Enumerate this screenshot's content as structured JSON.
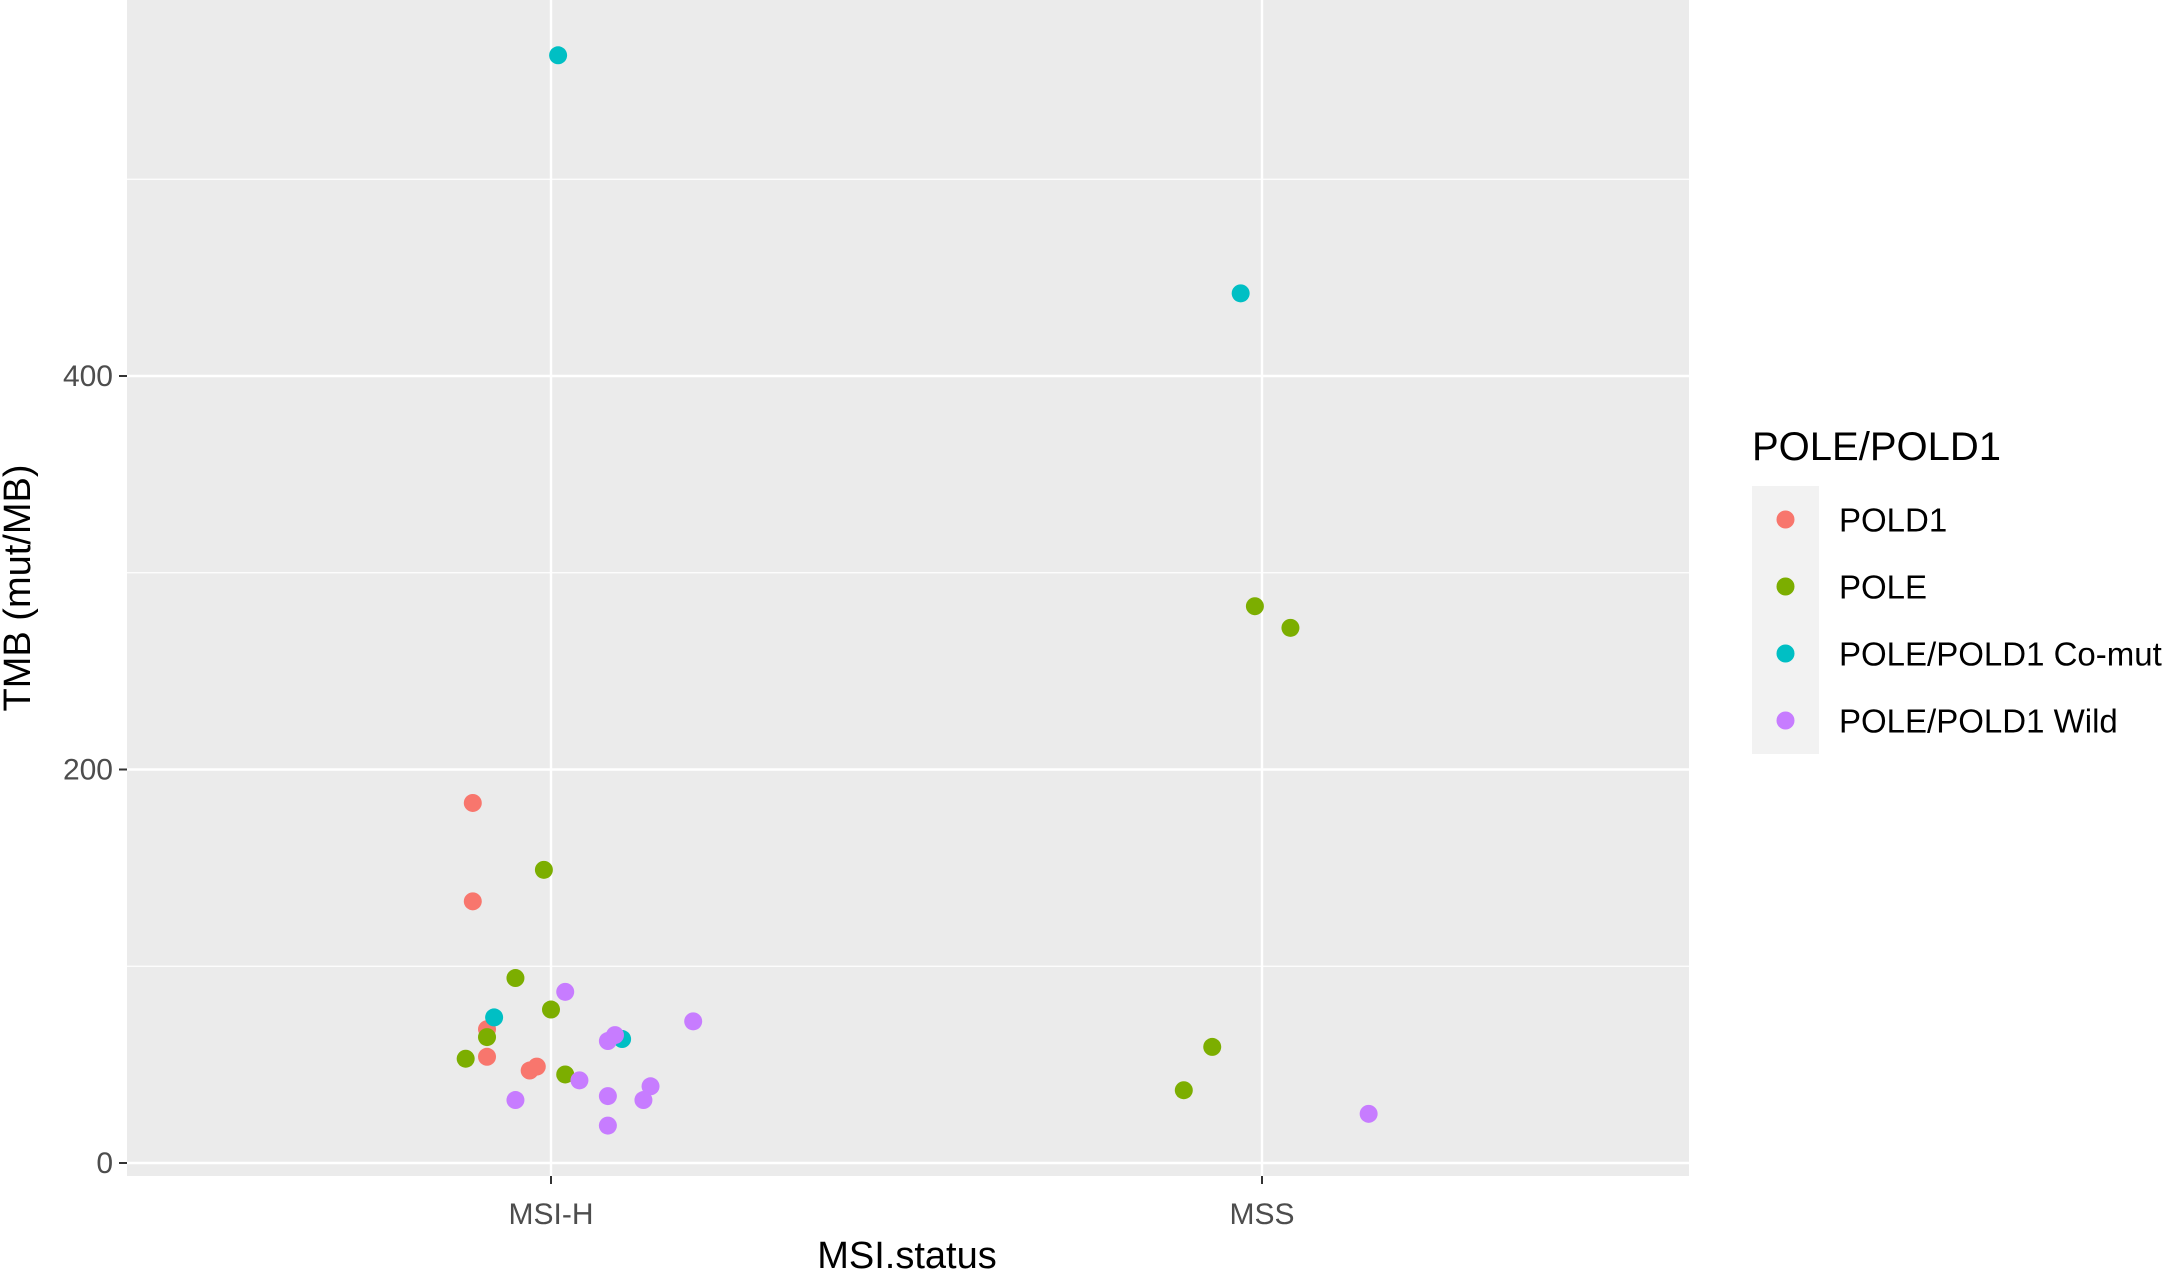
{
  "chart_data": {
    "type": "scatter",
    "xlabel": "MSI.status",
    "ylabel": "TMB (mut/MB)",
    "categories": [
      "MSI-H",
      "MSS"
    ],
    "ylim": [
      -8,
      590
    ],
    "yticks": [
      0,
      200,
      400
    ],
    "grid": true,
    "legend": {
      "title": "POLE/POLD1",
      "placement": "right",
      "entries": [
        "POLD1",
        "POLE",
        "POLE/POLD1 Co-mut",
        "POLE/POLD1 Wild"
      ]
    },
    "series": [
      {
        "name": "POLD1",
        "color": "#F8766D",
        "points": [
          {
            "x": "MSI-H",
            "offset": -0.11,
            "y": 183
          },
          {
            "x": "MSI-H",
            "offset": -0.11,
            "y": 133
          },
          {
            "x": "MSI-H",
            "offset": -0.09,
            "y": 68
          },
          {
            "x": "MSI-H",
            "offset": -0.09,
            "y": 54
          },
          {
            "x": "MSI-H",
            "offset": -0.03,
            "y": 47
          },
          {
            "x": "MSI-H",
            "offset": -0.02,
            "y": 49
          }
        ]
      },
      {
        "name": "POLE",
        "color": "#7CAE00",
        "points": [
          {
            "x": "MSI-H",
            "offset": -0.01,
            "y": 149
          },
          {
            "x": "MSI-H",
            "offset": -0.05,
            "y": 94
          },
          {
            "x": "MSI-H",
            "offset": 0.0,
            "y": 78
          },
          {
            "x": "MSI-H",
            "offset": -0.09,
            "y": 64
          },
          {
            "x": "MSI-H",
            "offset": -0.12,
            "y": 53
          },
          {
            "x": "MSI-H",
            "offset": 0.02,
            "y": 45
          },
          {
            "x": "MSS",
            "offset": -0.01,
            "y": 283
          },
          {
            "x": "MSS",
            "offset": 0.04,
            "y": 272
          },
          {
            "x": "MSS",
            "offset": -0.07,
            "y": 59
          },
          {
            "x": "MSS",
            "offset": -0.11,
            "y": 37
          }
        ]
      },
      {
        "name": "POLE/POLD1 Co-mut",
        "color": "#00BFC4",
        "points": [
          {
            "x": "MSI-H",
            "offset": 0.01,
            "y": 563
          },
          {
            "x": "MSI-H",
            "offset": -0.08,
            "y": 74
          },
          {
            "x": "MSI-H",
            "offset": 0.1,
            "y": 63
          },
          {
            "x": "MSS",
            "offset": -0.03,
            "y": 442
          }
        ]
      },
      {
        "name": "POLE/POLD1 Wild",
        "color": "#C77CFF",
        "points": [
          {
            "x": "MSI-H",
            "offset": 0.02,
            "y": 87
          },
          {
            "x": "MSI-H",
            "offset": 0.2,
            "y": 72
          },
          {
            "x": "MSI-H",
            "offset": 0.09,
            "y": 65
          },
          {
            "x": "MSI-H",
            "offset": 0.08,
            "y": 62
          },
          {
            "x": "MSI-H",
            "offset": 0.04,
            "y": 42
          },
          {
            "x": "MSI-H",
            "offset": 0.14,
            "y": 39
          },
          {
            "x": "MSI-H",
            "offset": 0.08,
            "y": 34
          },
          {
            "x": "MSI-H",
            "offset": 0.13,
            "y": 32
          },
          {
            "x": "MSI-H",
            "offset": -0.05,
            "y": 32
          },
          {
            "x": "MSI-H",
            "offset": 0.08,
            "y": 19
          },
          {
            "x": "MSS",
            "offset": 0.15,
            "y": 25
          }
        ]
      }
    ]
  }
}
